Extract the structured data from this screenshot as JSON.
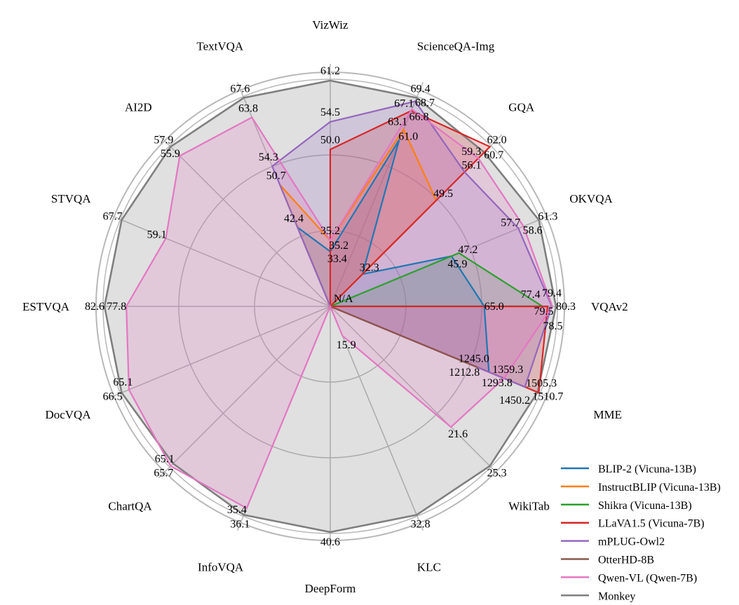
{
  "chart_data": {
    "type": "radar",
    "axes": [
      "VizWiz",
      "ScienceQA-Img",
      "GQA",
      "OKVQA",
      "VQAv2",
      "MME",
      "WikiTab",
      "KLC",
      "DeepForm",
      "InfoVQA",
      "ChartQA",
      "DocVQA",
      "ESTVQA",
      "STVQA",
      "AI2D",
      "TextVQA"
    ],
    "center_label": "N/A",
    "grid": true,
    "legend_position": "bottom-right",
    "series": [
      {
        "name": "BLIP-2 (Vicuna-13B)",
        "color": "#1f77b4",
        "values": [
          33.4,
          61.0,
          32.3,
          45.9,
          65.0,
          1293.8,
          null,
          null,
          null,
          null,
          null,
          null,
          null,
          null,
          null,
          42.4
        ]
      },
      {
        "name": "InstructBLIP (Vicuna-13B)",
        "color": "#ff7f0e",
        "values": [
          35.2,
          63.1,
          49.5,
          null,
          null,
          1212.8,
          null,
          null,
          null,
          null,
          null,
          null,
          null,
          null,
          null,
          50.7
        ]
      },
      {
        "name": "Shikra (Vicuna-13B)",
        "color": "#2ca02c",
        "values": [
          null,
          null,
          null,
          47.2,
          77.4,
          null,
          null,
          null,
          null,
          null,
          null,
          null,
          null,
          null,
          null,
          null
        ]
      },
      {
        "name": "LLaVA1.5 (Vicuna-7B)",
        "color": "#d62728",
        "values": [
          50.0,
          66.8,
          62.0,
          null,
          78.5,
          1510.7,
          null,
          null,
          null,
          null,
          null,
          null,
          null,
          null,
          null,
          null
        ]
      },
      {
        "name": "mPLUG-Owl2",
        "color": "#9467bd",
        "values": [
          54.5,
          68.7,
          56.1,
          57.7,
          79.4,
          1450.2,
          null,
          null,
          null,
          null,
          null,
          null,
          null,
          null,
          null,
          54.3
        ]
      },
      {
        "name": "OtterHD-8B",
        "color": "#8c564b",
        "values": [
          null,
          null,
          null,
          null,
          null,
          1245.0,
          null,
          null,
          null,
          null,
          null,
          null,
          null,
          null,
          null,
          null
        ]
      },
      {
        "name": "Qwen-VL (Qwen-7B)",
        "color": "#e377c2",
        "values": [
          35.2,
          67.1,
          59.3,
          58.6,
          79.5,
          1359.3,
          21.6,
          15.9,
          null,
          35.4,
          65.7,
          65.1,
          77.8,
          59.1,
          55.9,
          63.8
        ]
      },
      {
        "name": "Monkey",
        "color": "#7f7f7f",
        "values": [
          61.2,
          69.4,
          60.7,
          61.3,
          80.3,
          1505.3,
          25.3,
          32.8,
          40.6,
          36.1,
          65.1,
          66.5,
          82.6,
          67.7,
          57.9,
          67.6
        ]
      }
    ]
  }
}
